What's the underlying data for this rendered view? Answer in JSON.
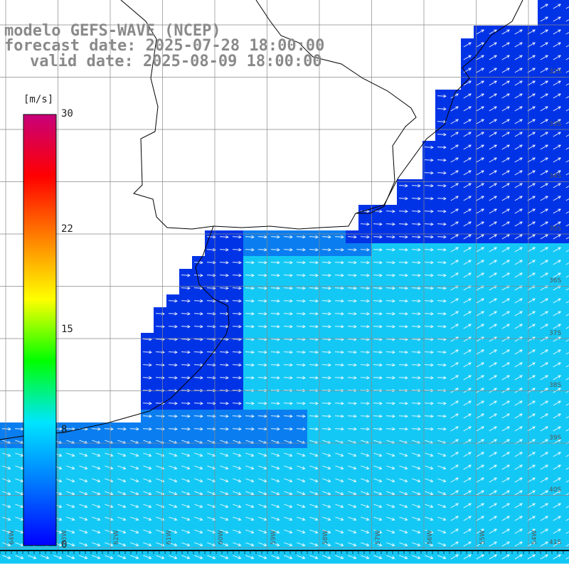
{
  "header": {
    "model": "modelo GEFS-WAVE (NCEP)",
    "forecast": "forecast date: 2025-07-28 18:00:00",
    "valid": "valid date: 2025-08-09 18:00:00"
  },
  "colorbar": {
    "unit": "[m/s]",
    "ticks": [
      "0",
      "8",
      "15",
      "22",
      "30"
    ],
    "tick_values": [
      0,
      8,
      15,
      22,
      30
    ],
    "range": [
      0,
      30
    ],
    "colors": [
      "#0000ff",
      "#0077ff",
      "#00e5ff",
      "#00ff00",
      "#ffff00",
      "#ff8000",
      "#ff0000",
      "#c8007a"
    ]
  },
  "colors": {
    "land": "#ffffff",
    "grid": "#888888",
    "coast": "#000000",
    "calm": "#0033e6",
    "mid": "#0a7ef0",
    "sea": "#14c8f5",
    "arrow": "#ffffff"
  },
  "lat_labels": [
    "32S",
    "33S",
    "34S",
    "35S",
    "36S",
    "37S",
    "38S",
    "39S",
    "40S",
    "41S"
  ],
  "lon_labels": [
    "64W",
    "63W",
    "62W",
    "61W",
    "60W",
    "59W",
    "58W",
    "57W",
    "56W",
    "55W",
    "54W"
  ]
}
